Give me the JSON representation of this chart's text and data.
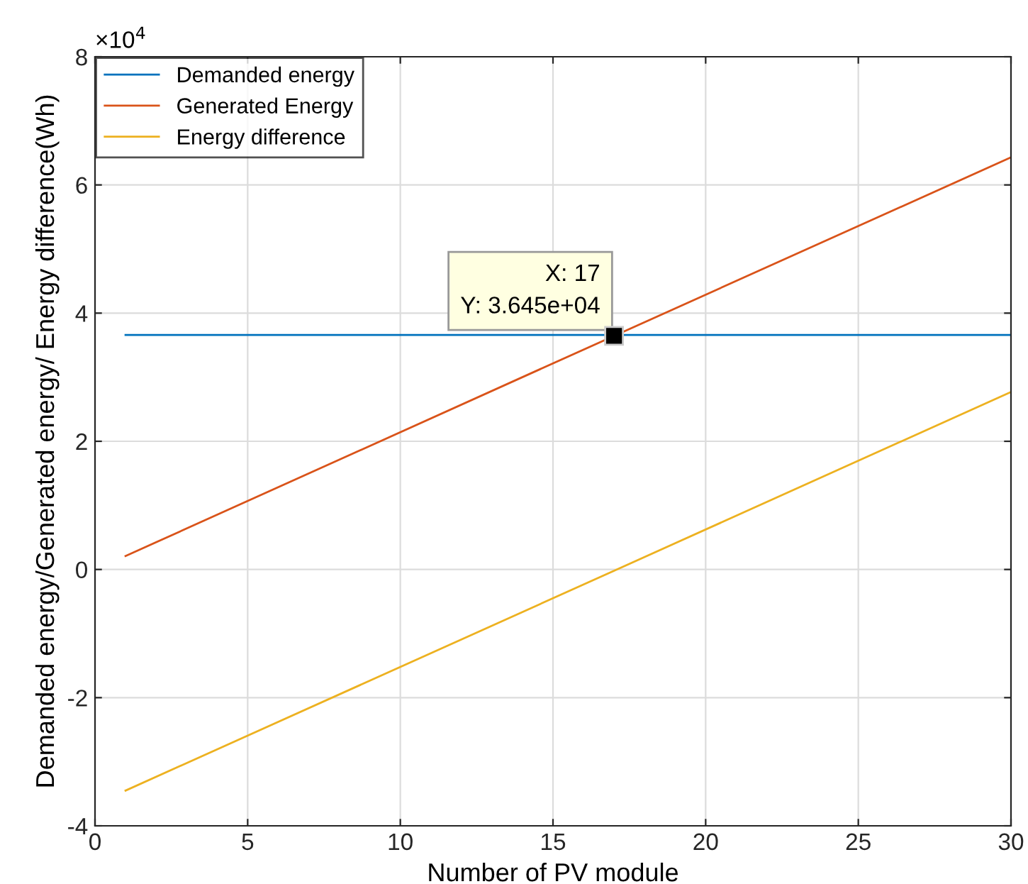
{
  "chart_data": {
    "type": "line",
    "xlabel": "Number of PV module",
    "ylabel": "Demanded energy/Generated energy/ Energy difference(Wh)",
    "series": [
      {
        "name": "Demanded energy",
        "color": "#0072bd",
        "x": [
          1,
          17,
          30
        ],
        "values": [
          3.66,
          3.66,
          3.66
        ]
      },
      {
        "name": "Generated Energy",
        "color": "#d95319",
        "x": [
          1,
          17,
          30
        ],
        "values": [
          0.21,
          3.645,
          6.43
        ]
      },
      {
        "name": "Energy difference",
        "color": "#edb120",
        "x": [
          1,
          17,
          30
        ],
        "values": [
          -3.45,
          -0.02,
          2.77
        ]
      }
    ],
    "xlim": [
      0,
      30
    ],
    "xticks": [
      0,
      5,
      10,
      15,
      20,
      25,
      30
    ],
    "ylim": [
      -4,
      8
    ],
    "yticks": [
      -4,
      -2,
      0,
      2,
      4,
      6,
      8
    ],
    "annotations": [
      "×10$^{4}$",
      {
        "text": "X: 17\nY: 3.645e+04",
        "x": 17,
        "y": 3.645
      }
    ],
    "grid": true,
    "legend": "top left",
    "marker": "none",
    "line_style": "solid"
  }
}
